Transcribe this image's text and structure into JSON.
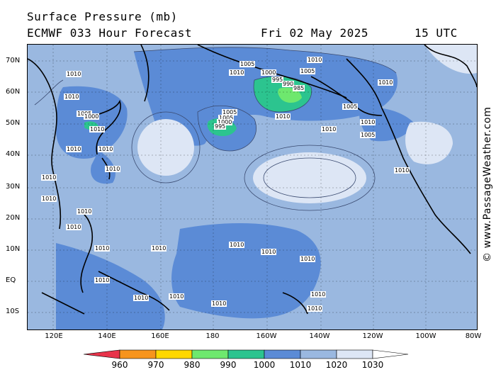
{
  "header": {
    "title": "Surface Pressure (mb)",
    "model": "ECMWF 033 Hour Forecast",
    "date": "Fri 02 May 2025",
    "time": "15 UTC"
  },
  "watermark": "© www.PassageWeather.com",
  "lat_labels": [
    "70N",
    "60N",
    "50N",
    "40N",
    "30N",
    "20N",
    "10N",
    "EQ",
    "10S"
  ],
  "lon_labels": [
    "120E",
    "140E",
    "160E",
    "180",
    "160W",
    "140W",
    "120W",
    "100W",
    "80W"
  ],
  "colorbar": {
    "labels": [
      "960",
      "970",
      "980",
      "990",
      "1000",
      "1010",
      "1020",
      "1030"
    ],
    "colors": [
      "#e8334a",
      "#f7941d",
      "#ffd700",
      "#6ee86e",
      "#2cc48f",
      "#5b8bd6",
      "#9ab8e0",
      "#dde6f5"
    ]
  },
  "isobar_labels": [
    {
      "t": "1010"
    },
    {
      "t": "1005"
    },
    {
      "t": "1000"
    },
    {
      "t": "995"
    },
    {
      "t": "990"
    },
    {
      "t": "985"
    },
    {
      "t": "1005"
    },
    {
      "t": "1010"
    },
    {
      "t": "1010"
    },
    {
      "t": "1005"
    },
    {
      "t": "1005"
    },
    {
      "t": "1000"
    },
    {
      "t": "995"
    },
    {
      "t": "1010"
    },
    {
      "t": "1005"
    },
    {
      "t": "1010"
    },
    {
      "t": "1010"
    },
    {
      "t": "1010"
    },
    {
      "t": "1010"
    },
    {
      "t": "1005"
    },
    {
      "t": "1000"
    },
    {
      "t": "1010"
    },
    {
      "t": "1010"
    },
    {
      "t": "1010"
    },
    {
      "t": "1010"
    },
    {
      "t": "1010"
    },
    {
      "t": "1010"
    },
    {
      "t": "1010"
    },
    {
      "t": "1010"
    },
    {
      "t": "1010"
    },
    {
      "t": "1010"
    },
    {
      "t": "1010"
    },
    {
      "t": "1010"
    },
    {
      "t": "1010"
    },
    {
      "t": "1010"
    },
    {
      "t": "1010"
    },
    {
      "t": "1010"
    },
    {
      "t": "1010"
    },
    {
      "t": "1010"
    },
    {
      "t": "1010"
    },
    {
      "t": "1005"
    },
    {
      "t": "1010"
    }
  ]
}
